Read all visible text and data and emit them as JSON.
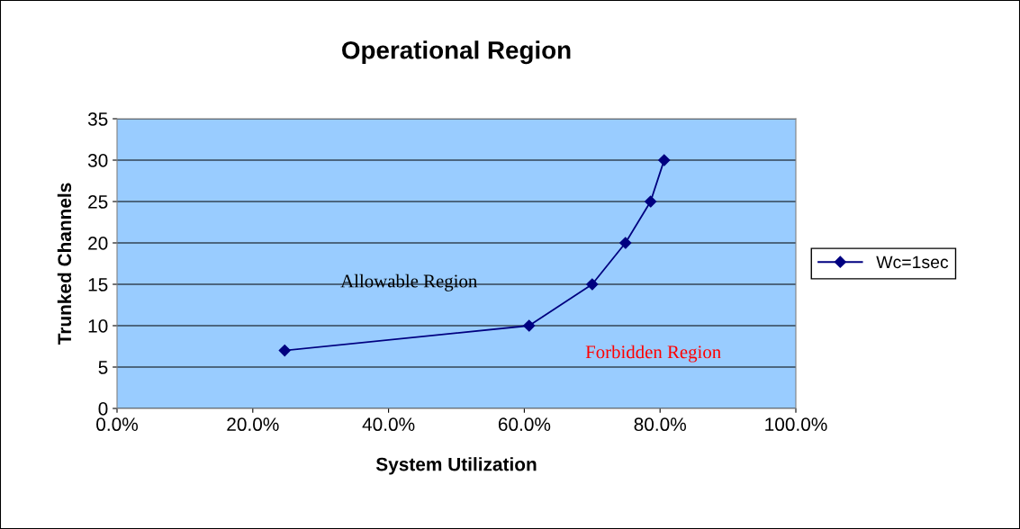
{
  "chart_data": {
    "type": "line",
    "title": "Operational Region",
    "xlabel": "System Utilization",
    "ylabel": "Trunked Channels",
    "x": [
      0.247,
      0.607,
      0.7,
      0.749,
      0.786,
      0.806
    ],
    "series": [
      {
        "name": "Wc=1sec",
        "color": "#000080",
        "values": [
          7,
          10,
          15,
          20,
          25,
          30
        ]
      }
    ],
    "xlim": [
      0,
      1
    ],
    "xticks": [
      {
        "value": 0,
        "label": "0.0%"
      },
      {
        "value": 0.2,
        "label": "20.0%"
      },
      {
        "value": 0.4,
        "label": "40.0%"
      },
      {
        "value": 0.6,
        "label": "60.0%"
      },
      {
        "value": 0.8,
        "label": "80.0%"
      },
      {
        "value": 1,
        "label": "100.0%"
      }
    ],
    "ylim": [
      0,
      35
    ],
    "yticks": [
      0,
      5,
      10,
      15,
      20,
      25,
      30,
      35
    ],
    "grid": "y",
    "legend": "right",
    "marker": "diamond",
    "line_style": "solid",
    "annotations": [
      "Allowable Region",
      "Forbidden Region"
    ]
  }
}
